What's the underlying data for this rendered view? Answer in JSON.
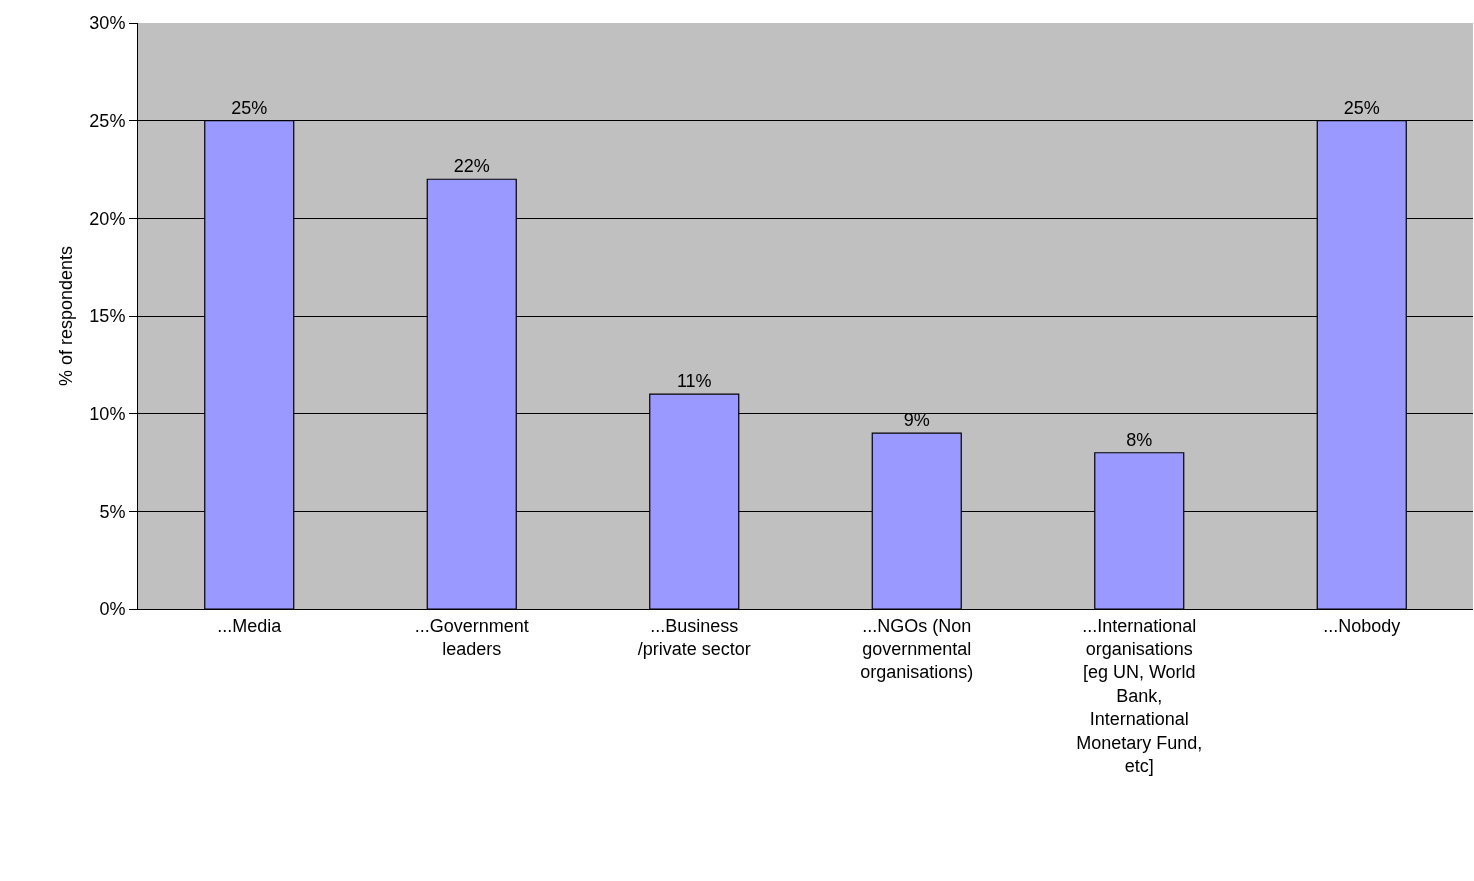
{
  "chart_data": {
    "type": "bar",
    "ylabel": "% of respondents",
    "categories": [
      "...Media",
      "...Government leaders",
      "...Business /private sector",
      "...NGOs (Non governmental organisations)",
      "...International organisations [eg UN, World Bank, International Monetary Fund, etc]",
      "...Nobody"
    ],
    "values": [
      25,
      22,
      11,
      9,
      8,
      25
    ],
    "value_labels": [
      "25%",
      "22%",
      "11%",
      "9%",
      "8%",
      "25%"
    ],
    "color": "#9999ff",
    "ylim": [
      0,
      30
    ],
    "yticks": [
      {
        "value": 0,
        "label": "0%"
      },
      {
        "value": 5,
        "label": "5%"
      },
      {
        "value": 10,
        "label": "10%"
      },
      {
        "value": 15,
        "label": "15%"
      },
      {
        "value": 20,
        "label": "20%"
      },
      {
        "value": 25,
        "label": "25%"
      },
      {
        "value": 30,
        "label": "30%"
      }
    ],
    "grid": "y",
    "legend": false
  }
}
